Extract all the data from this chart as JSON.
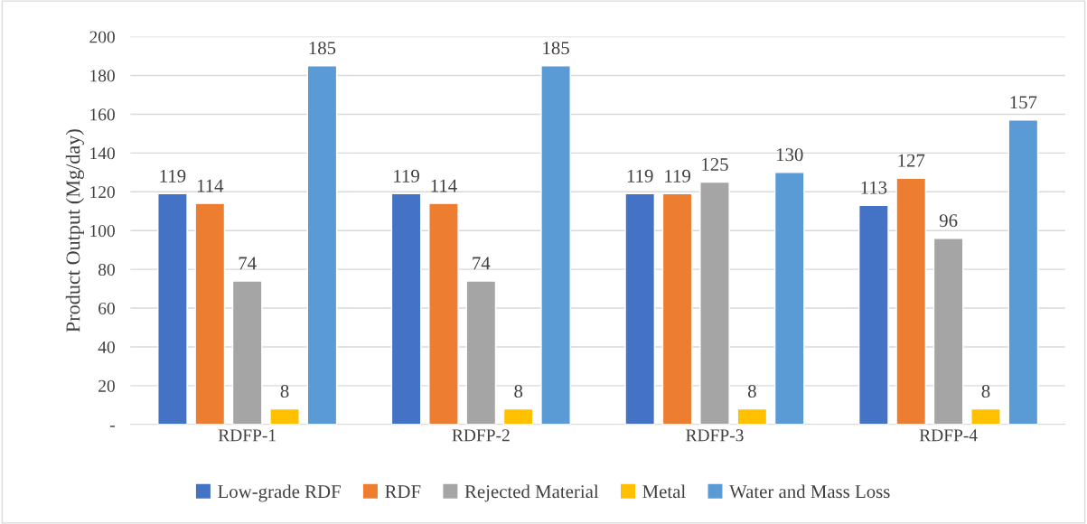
{
  "chart_data": {
    "type": "bar",
    "ylabel": "Product Output (Mg/day)",
    "categories": [
      "RDFP-1",
      "RDFP-2",
      "RDFP-3",
      "RDFP-4"
    ],
    "series": [
      {
        "name": "Low-grade RDF",
        "color": "#4472c4",
        "values": [
          119,
          119,
          119,
          113
        ]
      },
      {
        "name": "RDF",
        "color": "#ed7d31",
        "values": [
          114,
          114,
          119,
          127
        ]
      },
      {
        "name": "Rejected Material",
        "color": "#a5a5a5",
        "values": [
          74,
          74,
          125,
          96
        ]
      },
      {
        "name": "Metal",
        "color": "#ffc000",
        "values": [
          8,
          8,
          8,
          8
        ]
      },
      {
        "name": "Water and Mass Loss",
        "color": "#5b9bd5",
        "values": [
          185,
          185,
          130,
          157
        ]
      }
    ],
    "ylim": [
      0,
      200
    ],
    "yticks": [
      {
        "value": 0,
        "label": "-"
      },
      20,
      40,
      60,
      80,
      100,
      120,
      140,
      160,
      180,
      200
    ],
    "grid": "y",
    "legend": "bottom",
    "data_labels": true
  }
}
